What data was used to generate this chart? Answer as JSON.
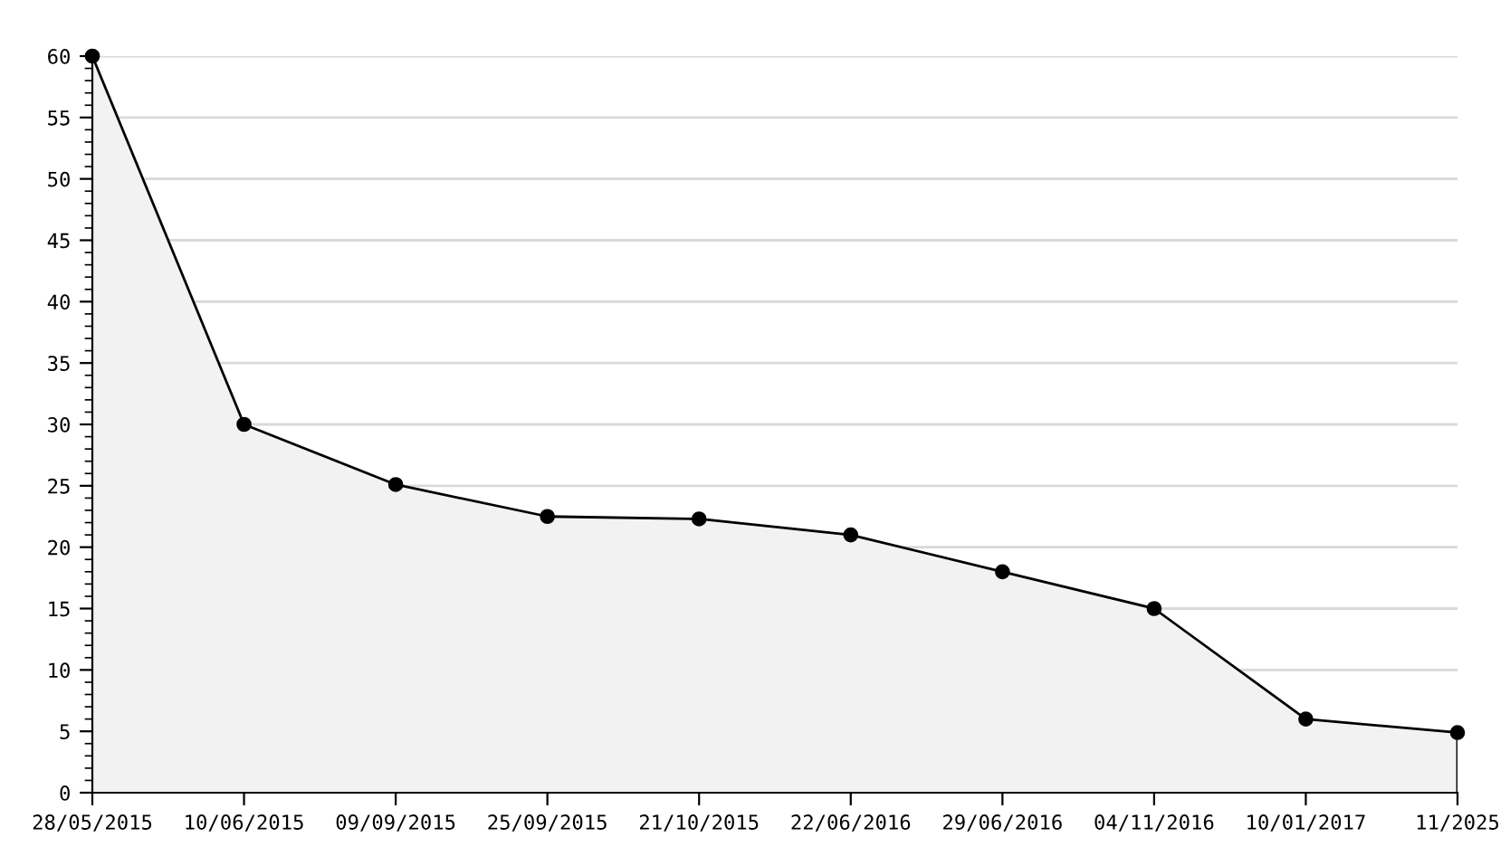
{
  "chart_data": {
    "type": "area",
    "categories": [
      "28/05/2015",
      "10/06/2015",
      "09/09/2015",
      "25/09/2015",
      "21/10/2015",
      "22/06/2016",
      "29/06/2016",
      "04/11/2016",
      "10/01/2017",
      "11/2025"
    ],
    "series": [
      {
        "color": "#000000",
        "values": [
          60,
          30,
          25.1,
          22.5,
          22.3,
          21,
          18,
          15,
          6,
          4.9
        ]
      }
    ],
    "ylim": [
      0,
      60
    ],
    "yticks": [
      0,
      5,
      10,
      15,
      20,
      25,
      30,
      35,
      40,
      45,
      50,
      55,
      60
    ],
    "grid": "y",
    "marker": "circle",
    "line_style": "solid"
  }
}
